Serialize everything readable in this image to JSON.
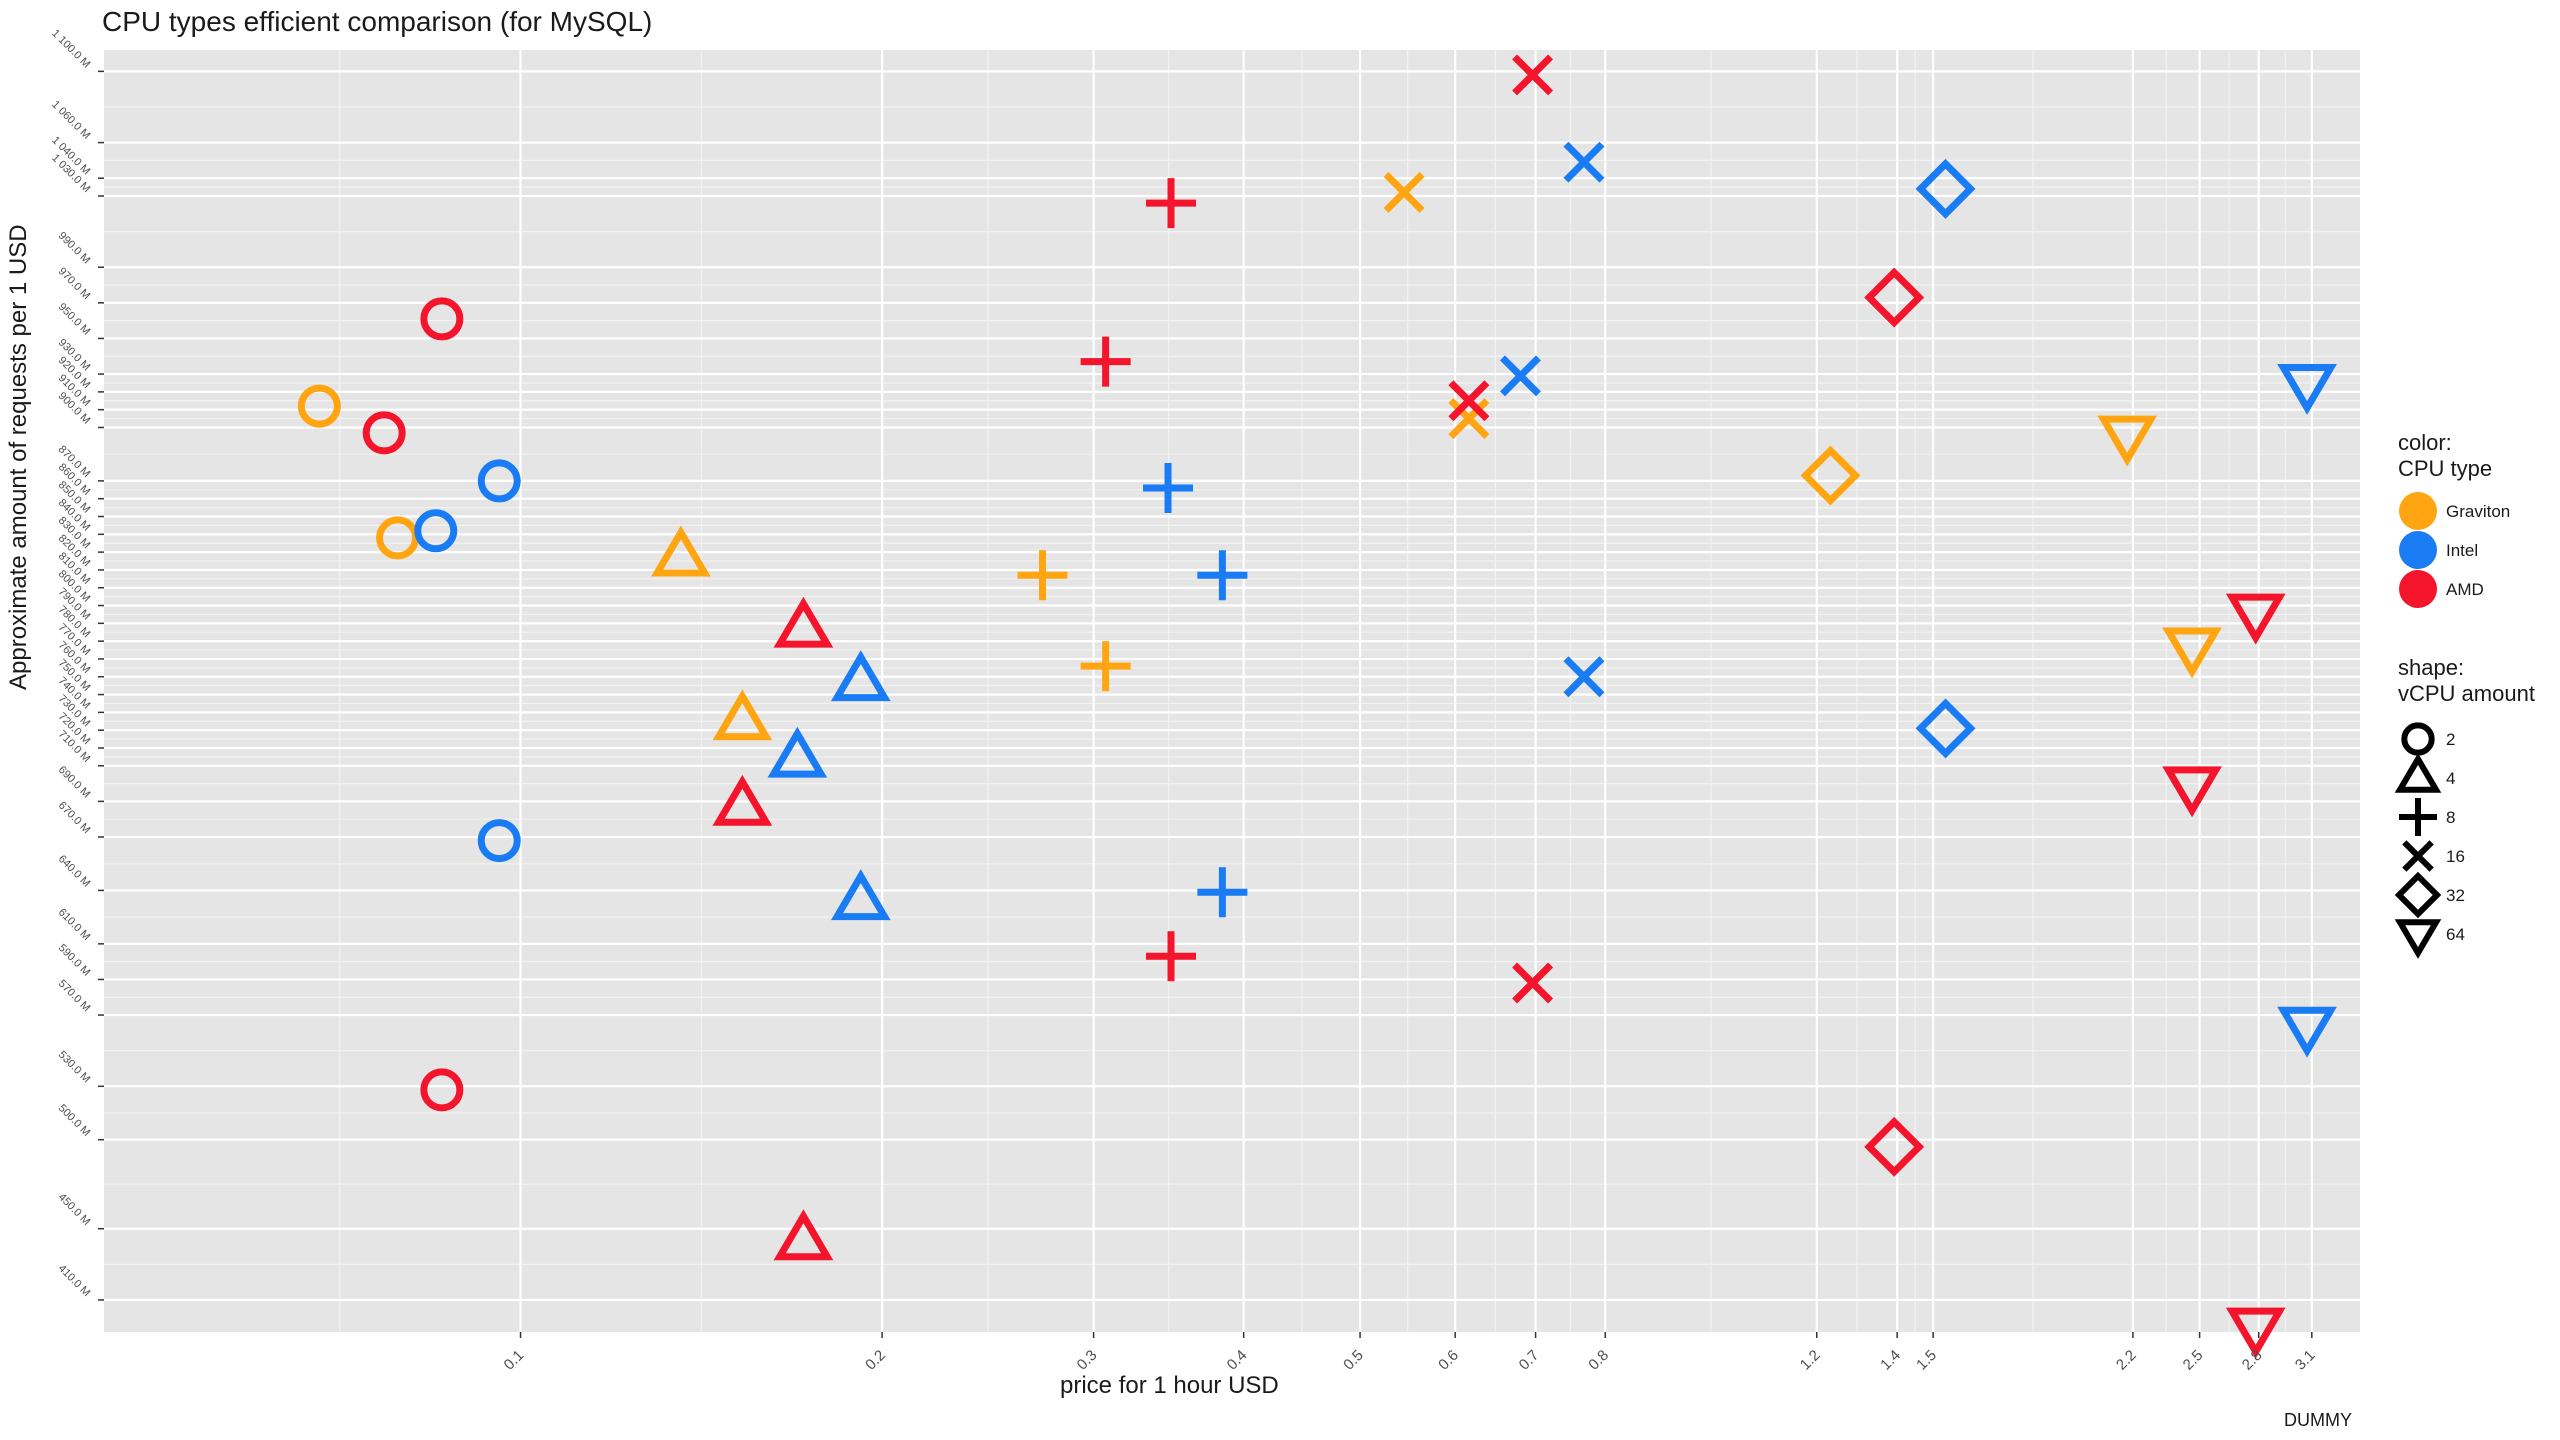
{
  "colors": {
    "panel": "#e5e5e5",
    "grid_major": "#ffffff",
    "Graviton": "#ffa512",
    "Intel": "#1a7cf4",
    "AMD": "#f4142b"
  },
  "chart_data": {
    "type": "scatter",
    "title": "CPU types efficient comparison (for MySQL)",
    "xlabel": "price for 1 hour USD",
    "ylabel": "Approximate amount of requests per 1 USD",
    "caption": "DUMMY",
    "x_scale": "log",
    "xlim": [
      0.045,
      3.4
    ],
    "ylim": [
      392,
      1112
    ],
    "grid": true,
    "x_ticks": [
      0.1,
      0.2,
      0.3,
      0.4,
      0.5,
      0.6,
      0.7,
      0.8,
      1.2,
      1.4,
      1.5,
      2.2,
      2.5,
      2.8,
      3.1
    ],
    "x_tick_labels": [
      "0.1",
      "0.2",
      "0.3",
      "0.4",
      "0.5",
      "0.6",
      "0.7",
      "0.8",
      "1.2",
      "1.4",
      "1.5",
      "2.2",
      "2.5",
      "2.8",
      "3.1"
    ],
    "y_ticks": [
      410,
      450,
      500,
      530,
      570,
      590,
      610,
      640,
      670,
      690,
      710,
      720,
      730,
      740,
      750,
      760,
      770,
      780,
      790,
      800,
      810,
      820,
      830,
      840,
      850,
      860,
      870,
      900,
      910,
      920,
      930,
      950,
      970,
      990,
      1030,
      1040,
      1060,
      1100
    ],
    "y_tick_labels": [
      "410.0 M",
      "450.0 M",
      "500.0 M",
      "530.0 M",
      "570.0 M",
      "590.0 M",
      "610.0 M",
      "640.0 M",
      "670.0 M",
      "690.0 M",
      "710.0 M",
      "720.0 M",
      "730.0 M",
      "740.0 M",
      "750.0 M",
      "760.0 M",
      "770.0 M",
      "780.0 M",
      "790.0 M",
      "800.0 M",
      "810.0 M",
      "820.0 M",
      "830.0 M",
      "840.0 M",
      "850.0 M",
      "860.0 M",
      "870.0 M",
      "900.0 M",
      "910.0 M",
      "920.0 M",
      "930.0 M",
      "950.0 M",
      "970.0 M",
      "990.0 M",
      "1 030.0 M",
      "1 040.0 M",
      "1 060.0 M",
      "1 100.0 M"
    ],
    "legend": {
      "placement": "right",
      "color_title": "color:\nCPU type",
      "color_entries": [
        "Graviton",
        "Intel",
        "AMD"
      ],
      "shape_title": "shape:\nvCPU amount",
      "shape_entries": [
        {
          "label": "2",
          "shape": "circle"
        },
        {
          "label": "4",
          "shape": "triangle"
        },
        {
          "label": "8",
          "shape": "plus"
        },
        {
          "label": "16",
          "shape": "cross"
        },
        {
          "label": "32",
          "shape": "diamond"
        },
        {
          "label": "64",
          "shape": "triangle-down"
        }
      ]
    },
    "points": [
      {
        "type": "Graviton",
        "vcpu": 2,
        "x": 0.068,
        "y": 912
      },
      {
        "type": "Graviton",
        "vcpu": 2,
        "x": 0.079,
        "y": 838
      },
      {
        "type": "Intel",
        "vcpu": 2,
        "x": 0.085,
        "y": 842
      },
      {
        "type": "Intel",
        "vcpu": 2,
        "x": 0.096,
        "y": 870
      },
      {
        "type": "Intel",
        "vcpu": 2,
        "x": 0.096,
        "y": 668
      },
      {
        "type": "AMD",
        "vcpu": 2,
        "x": 0.086,
        "y": 961
      },
      {
        "type": "AMD",
        "vcpu": 2,
        "x": 0.077,
        "y": 897
      },
      {
        "type": "AMD",
        "vcpu": 2,
        "x": 0.086,
        "y": 528
      },
      {
        "type": "Graviton",
        "vcpu": 4,
        "x": 0.136,
        "y": 827
      },
      {
        "type": "Graviton",
        "vcpu": 4,
        "x": 0.153,
        "y": 735
      },
      {
        "type": "Intel",
        "vcpu": 4,
        "x": 0.192,
        "y": 757
      },
      {
        "type": "Intel",
        "vcpu": 4,
        "x": 0.17,
        "y": 714
      },
      {
        "type": "Intel",
        "vcpu": 4,
        "x": 0.192,
        "y": 634
      },
      {
        "type": "AMD",
        "vcpu": 4,
        "x": 0.172,
        "y": 787
      },
      {
        "type": "AMD",
        "vcpu": 4,
        "x": 0.153,
        "y": 687
      },
      {
        "type": "AMD",
        "vcpu": 4,
        "x": 0.172,
        "y": 443
      },
      {
        "type": "Graviton",
        "vcpu": 8,
        "x": 0.272,
        "y": 817
      },
      {
        "type": "Graviton",
        "vcpu": 8,
        "x": 0.307,
        "y": 766
      },
      {
        "type": "Intel",
        "vcpu": 8,
        "x": 0.346,
        "y": 866
      },
      {
        "type": "Intel",
        "vcpu": 8,
        "x": 0.384,
        "y": 817
      },
      {
        "type": "Intel",
        "vcpu": 8,
        "x": 0.384,
        "y": 639
      },
      {
        "type": "AMD",
        "vcpu": 8,
        "x": 0.348,
        "y": 1026
      },
      {
        "type": "AMD",
        "vcpu": 8,
        "x": 0.307,
        "y": 937
      },
      {
        "type": "AMD",
        "vcpu": 8,
        "x": 0.348,
        "y": 603
      },
      {
        "type": "Graviton",
        "vcpu": 16,
        "x": 0.544,
        "y": 1032
      },
      {
        "type": "Graviton",
        "vcpu": 16,
        "x": 0.616,
        "y": 905
      },
      {
        "type": "Intel",
        "vcpu": 16,
        "x": 0.68,
        "y": 929
      },
      {
        "type": "Intel",
        "vcpu": 16,
        "x": 0.768,
        "y": 1049
      },
      {
        "type": "Intel",
        "vcpu": 16,
        "x": 0.768,
        "y": 760
      },
      {
        "type": "AMD",
        "vcpu": 16,
        "x": 0.696,
        "y": 1098
      },
      {
        "type": "AMD",
        "vcpu": 16,
        "x": 0.616,
        "y": 915
      },
      {
        "type": "AMD",
        "vcpu": 16,
        "x": 0.696,
        "y": 588
      },
      {
        "type": "Graviton",
        "vcpu": 32,
        "x": 1.232,
        "y": 873
      },
      {
        "type": "Intel",
        "vcpu": 32,
        "x": 1.536,
        "y": 1034
      },
      {
        "type": "Intel",
        "vcpu": 32,
        "x": 1.536,
        "y": 731
      },
      {
        "type": "AMD",
        "vcpu": 32,
        "x": 1.392,
        "y": 973
      },
      {
        "type": "AMD",
        "vcpu": 32,
        "x": 1.392,
        "y": 496
      },
      {
        "type": "Graviton",
        "vcpu": 64,
        "x": 2.176,
        "y": 896
      },
      {
        "type": "Graviton",
        "vcpu": 64,
        "x": 2.464,
        "y": 777
      },
      {
        "type": "Intel",
        "vcpu": 64,
        "x": 3.072,
        "y": 925
      },
      {
        "type": "Intel",
        "vcpu": 64,
        "x": 3.072,
        "y": 564
      },
      {
        "type": "AMD",
        "vcpu": 64,
        "x": 2.784,
        "y": 796
      },
      {
        "type": "AMD",
        "vcpu": 64,
        "x": 2.464,
        "y": 699
      },
      {
        "type": "AMD",
        "vcpu": 64,
        "x": 2.784,
        "y": 395
      }
    ]
  }
}
